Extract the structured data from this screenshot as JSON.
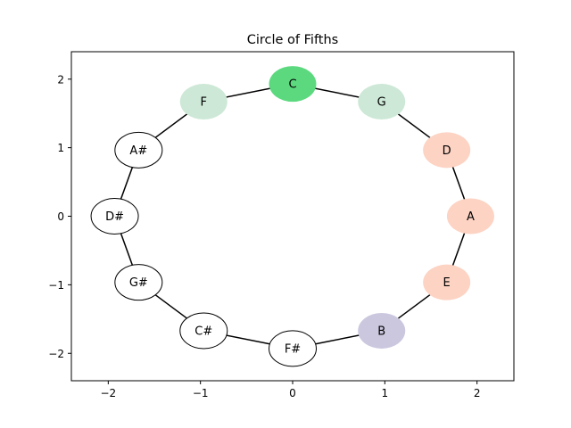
{
  "chart_data": {
    "type": "scatter",
    "title": "Circle of Fifths",
    "xlabel": "",
    "ylabel": "",
    "xlim": [
      -2.4,
      2.4
    ],
    "ylim": [
      -2.4,
      2.4
    ],
    "xticks": [
      -2,
      -1,
      0,
      1,
      2
    ],
    "yticks": [
      -2,
      -1,
      0,
      1,
      2
    ],
    "xtick_labels": [
      "−2",
      "−1",
      "0",
      "1",
      "2"
    ],
    "ytick_labels": [
      "−2",
      "−1",
      "0",
      "1",
      "2"
    ],
    "grid": false,
    "radius": 1.93,
    "edge_color": "#000000",
    "nodes": [
      {
        "label": "C",
        "x": 0.0,
        "y": 1.93,
        "fill": "#5cd97f",
        "outline": false
      },
      {
        "label": "G",
        "x": 0.965,
        "y": 1.671,
        "fill": "#cde8d6",
        "outline": false
      },
      {
        "label": "D",
        "x": 1.671,
        "y": 0.965,
        "fill": "#fdd3c3",
        "outline": false
      },
      {
        "label": "A",
        "x": 1.93,
        "y": 0.0,
        "fill": "#fdd3c3",
        "outline": false
      },
      {
        "label": "E",
        "x": 1.671,
        "y": -0.965,
        "fill": "#fdd3c3",
        "outline": false
      },
      {
        "label": "B",
        "x": 0.965,
        "y": -1.671,
        "fill": "#cbc7df",
        "outline": false
      },
      {
        "label": "F#",
        "x": 0.0,
        "y": -1.93,
        "fill": "#ffffff",
        "outline": true
      },
      {
        "label": "C#",
        "x": -0.965,
        "y": -1.671,
        "fill": "#ffffff",
        "outline": true
      },
      {
        "label": "G#",
        "x": -1.671,
        "y": -0.965,
        "fill": "#ffffff",
        "outline": true
      },
      {
        "label": "D#",
        "x": -1.93,
        "y": 0.0,
        "fill": "#ffffff",
        "outline": true
      },
      {
        "label": "A#",
        "x": -1.671,
        "y": 0.965,
        "fill": "#ffffff",
        "outline": true
      },
      {
        "label": "F",
        "x": -0.965,
        "y": 1.671,
        "fill": "#cde8d6",
        "outline": false
      }
    ]
  }
}
